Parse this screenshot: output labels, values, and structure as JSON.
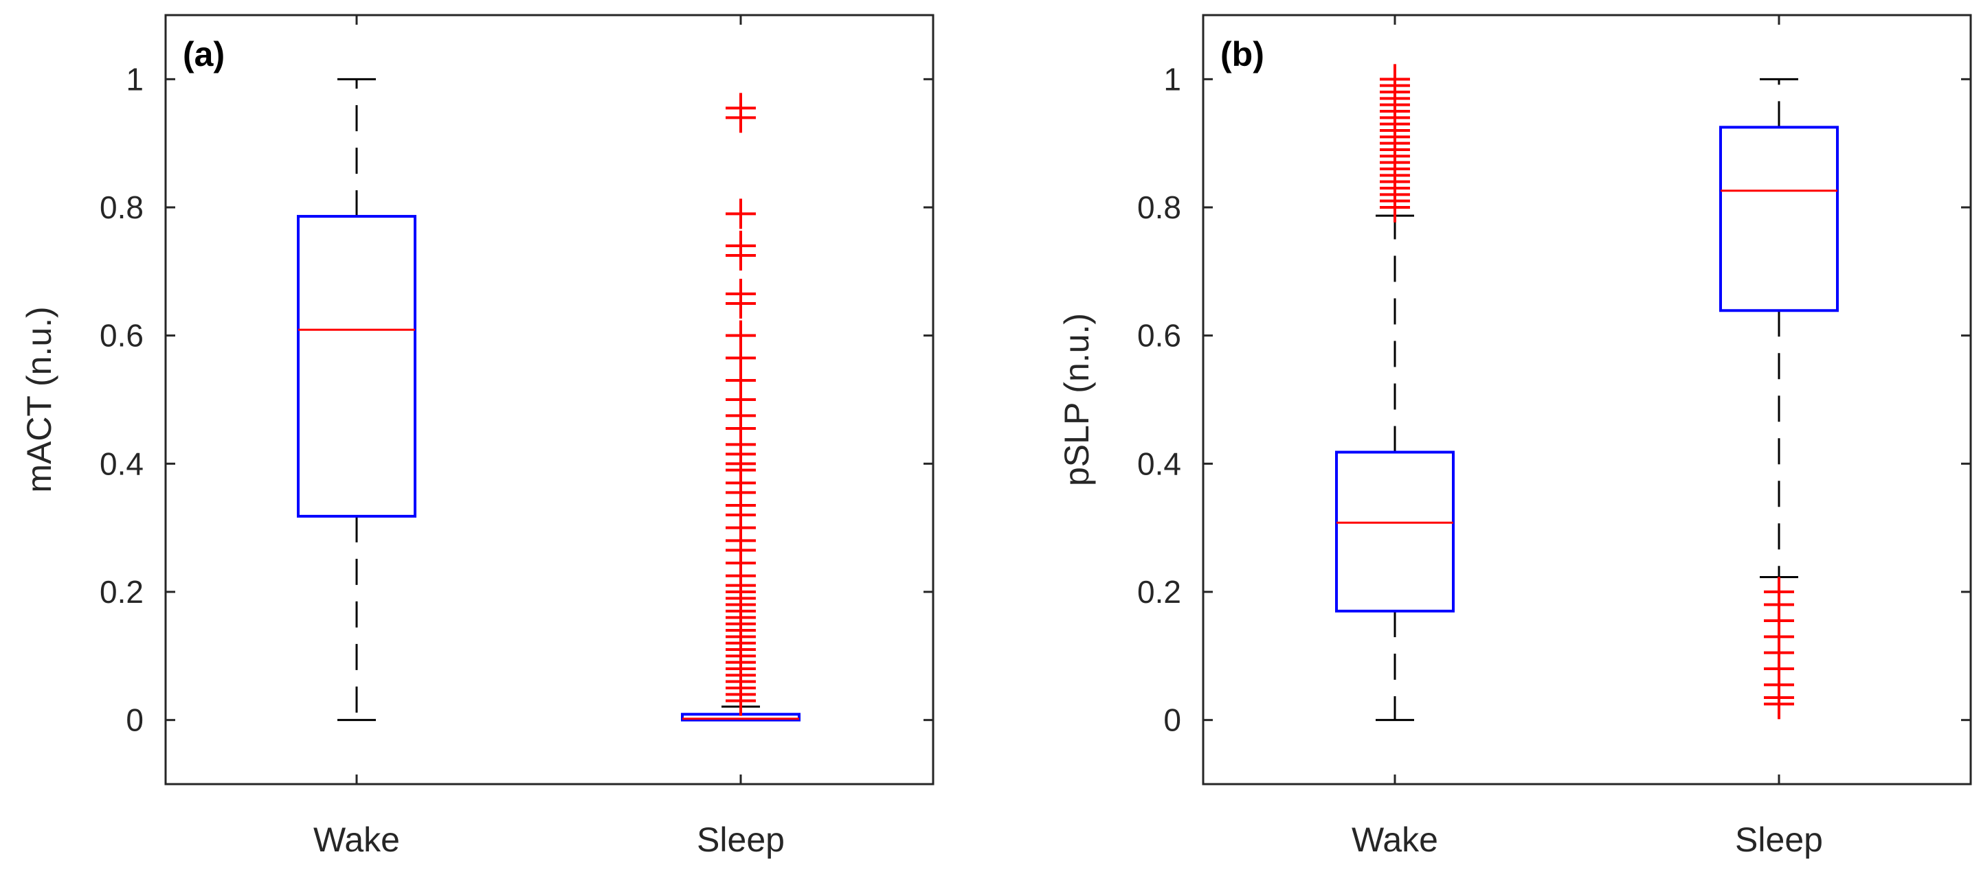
{
  "chart_data": [
    {
      "type": "boxplot",
      "panel_label": "(a)",
      "ylabel": "mACT (n.u.)",
      "xlabel": "",
      "categories": [
        "Wake",
        "Sleep"
      ],
      "ylim": [
        -0.1,
        1.1
      ],
      "yticks": [
        0,
        0.2,
        0.4,
        0.6,
        0.8,
        1
      ],
      "ytick_labels": [
        "0",
        "0.2",
        "0.4",
        "0.6",
        "0.8",
        "1"
      ],
      "colors": {
        "box": "#0000ff",
        "median": "#ff0000",
        "whisker": "#000000",
        "outlier": "#ff0000"
      },
      "boxes": [
        {
          "name": "Wake",
          "whisker_low": 0,
          "q1": 0.318,
          "median": 0.609,
          "q3": 0.786,
          "whisker_high": 1.0,
          "outliers": []
        },
        {
          "name": "Sleep",
          "whisker_low": 0,
          "q1": 0.0,
          "median": 0.002,
          "q3": 0.009,
          "whisker_high": 0.021,
          "outliers": [
            0.955,
            0.94,
            0.79,
            0.74,
            0.725,
            0.665,
            0.65,
            0.6,
            0.565,
            0.53,
            0.5,
            0.475,
            0.455,
            0.43,
            0.415,
            0.4,
            0.39,
            0.37,
            0.355,
            0.335,
            0.32,
            0.3,
            0.28,
            0.265,
            0.245,
            0.225,
            0.21,
            0.2,
            0.19,
            0.18,
            0.17,
            0.16,
            0.15,
            0.14,
            0.13,
            0.12,
            0.11,
            0.1,
            0.09,
            0.08,
            0.07,
            0.06,
            0.05,
            0.04,
            0.03
          ]
        }
      ]
    },
    {
      "type": "boxplot",
      "panel_label": "(b)",
      "ylabel": "pSLP (n.u.)",
      "xlabel": "",
      "categories": [
        "Wake",
        "Sleep"
      ],
      "ylim": [
        -0.1,
        1.1
      ],
      "yticks": [
        0,
        0.2,
        0.4,
        0.6,
        0.8,
        1
      ],
      "ytick_labels": [
        "0",
        "0.2",
        "0.4",
        "0.6",
        "0.8",
        "1"
      ],
      "colors": {
        "box": "#0000ff",
        "median": "#ff0000",
        "whisker": "#000000",
        "outlier": "#ff0000"
      },
      "boxes": [
        {
          "name": "Wake",
          "whisker_low": 0,
          "q1": 0.17,
          "median": 0.308,
          "q3": 0.418,
          "whisker_high": 0.787,
          "outliers": [
            1.0,
            0.99,
            0.98,
            0.97,
            0.96,
            0.95,
            0.94,
            0.93,
            0.92,
            0.91,
            0.9,
            0.89,
            0.88,
            0.87,
            0.86,
            0.85,
            0.84,
            0.83,
            0.82,
            0.81,
            0.8
          ]
        },
        {
          "name": "Sleep",
          "whisker_low": 0.223,
          "q1": 0.639,
          "median": 0.826,
          "q3": 0.925,
          "whisker_high": 1.0,
          "outliers": [
            0.2,
            0.18,
            0.155,
            0.13,
            0.105,
            0.08,
            0.055,
            0.035,
            0.025
          ]
        }
      ]
    }
  ]
}
